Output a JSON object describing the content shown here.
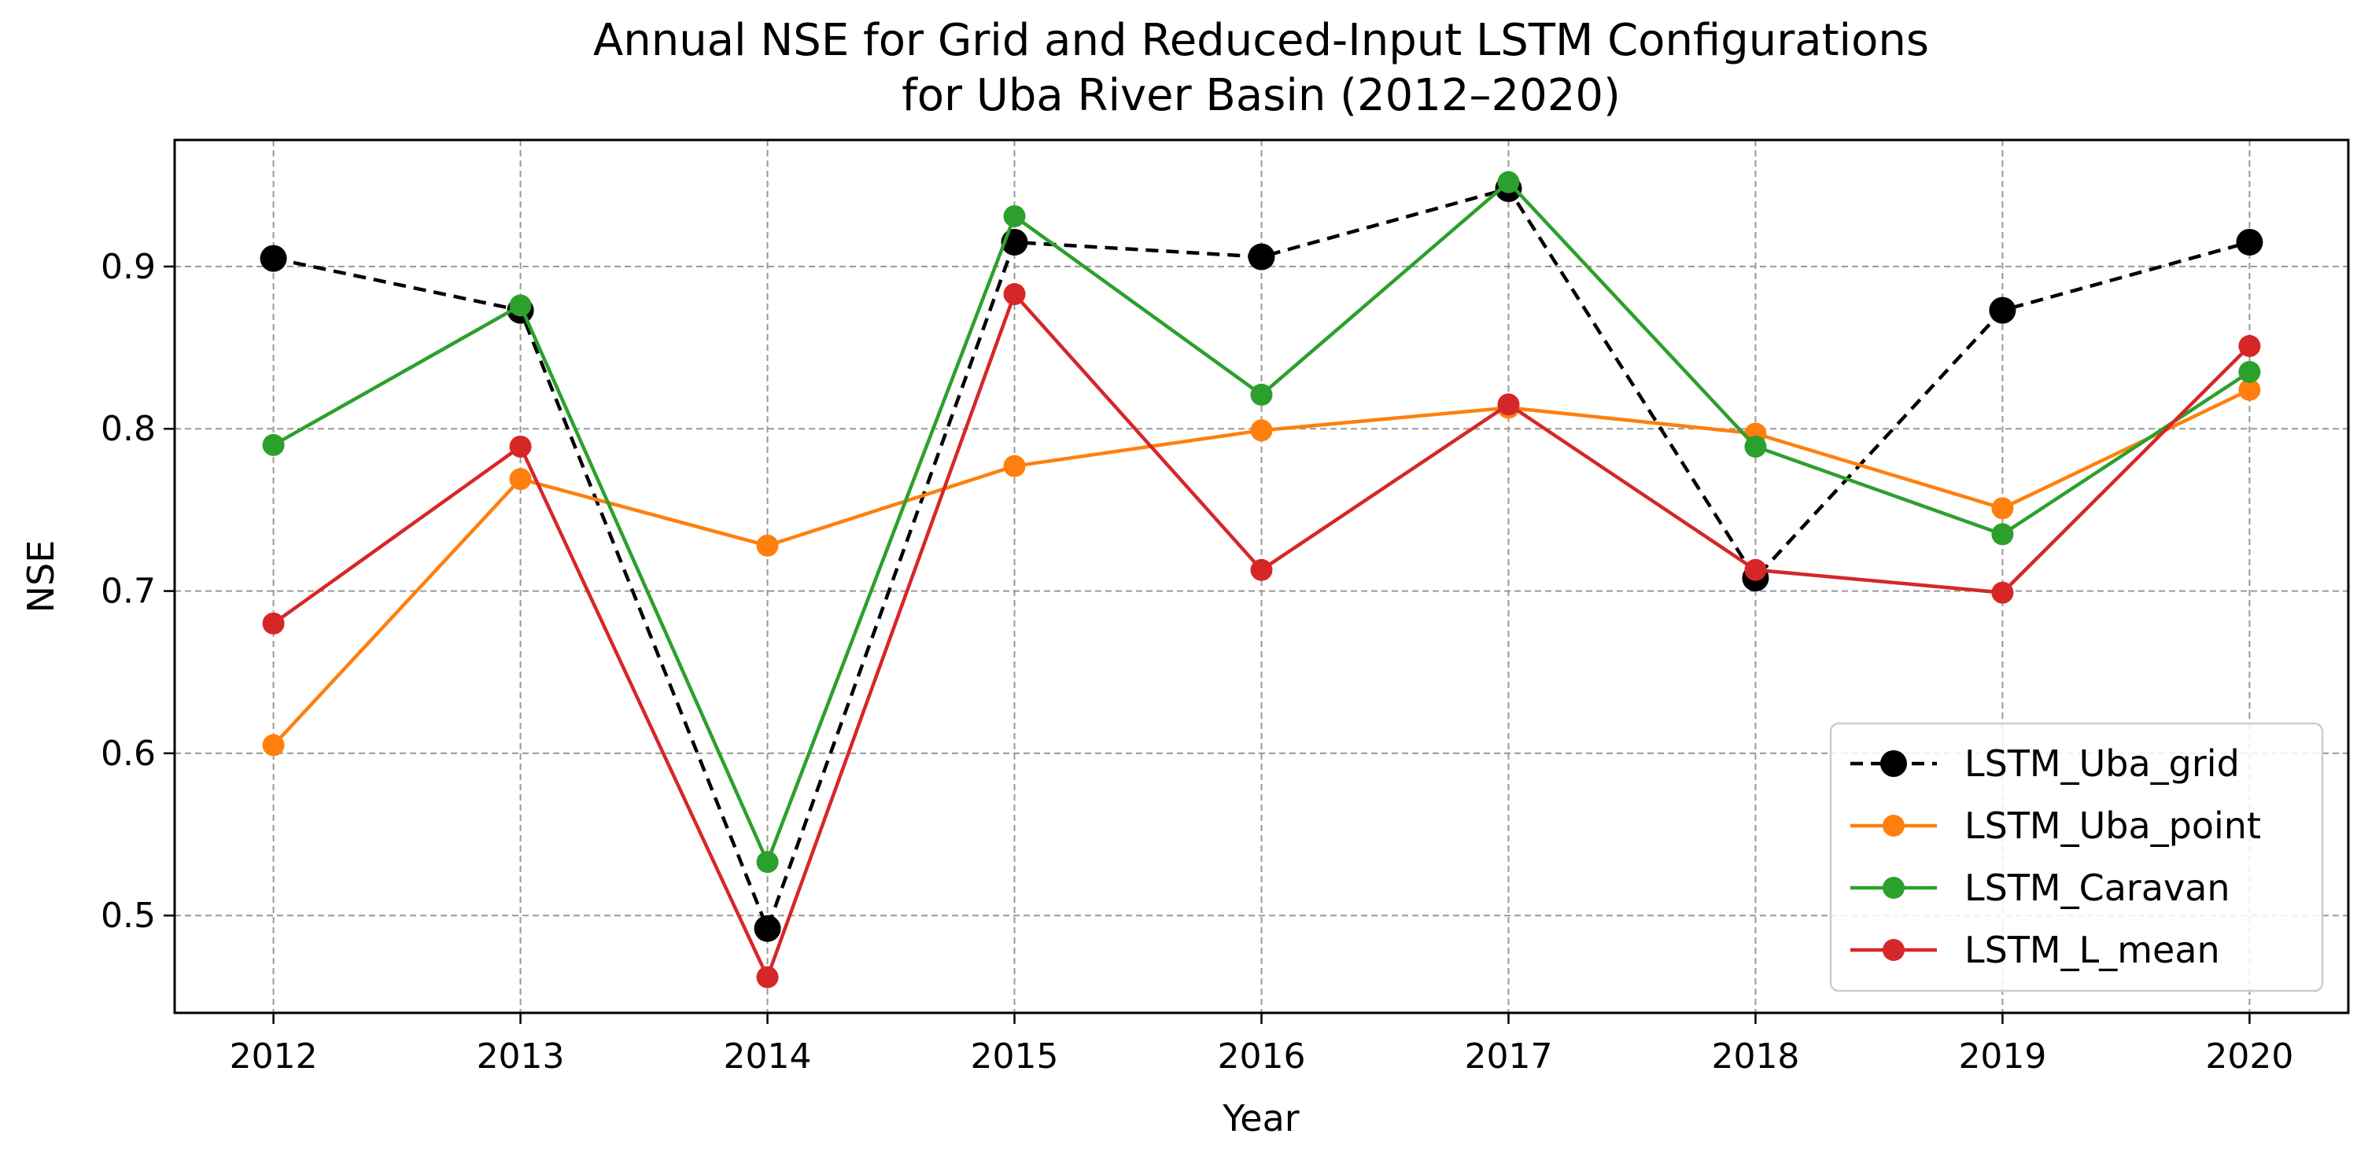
{
  "chart_data": {
    "type": "line",
    "title": "Annual NSE for Grid and Reduced-Input LSTM Configurations",
    "subtitle": "for Uba River Basin (2012–2020)",
    "xlabel": "Year",
    "ylabel": "NSE",
    "x": [
      2012,
      2013,
      2014,
      2015,
      2016,
      2017,
      2018,
      2019,
      2020
    ],
    "xlim": [
      2011.6,
      2020.4
    ],
    "ylim": [
      0.44,
      0.978
    ],
    "yticks": [
      0.5,
      0.6,
      0.7,
      0.8,
      0.9
    ],
    "grid": true,
    "legend_position": "bottom-right",
    "series": [
      {
        "name": "LSTM_Uba_grid",
        "color": "#000000",
        "dashed": true,
        "values": [
          0.905,
          0.873,
          0.492,
          0.915,
          0.906,
          0.948,
          0.708,
          0.873,
          0.915
        ]
      },
      {
        "name": "LSTM_Uba_point",
        "color": "#ff7f0e",
        "dashed": false,
        "values": [
          0.605,
          0.769,
          0.728,
          0.777,
          0.799,
          0.813,
          0.797,
          0.751,
          0.824
        ]
      },
      {
        "name": "LSTM_Caravan",
        "color": "#2ca02c",
        "dashed": false,
        "values": [
          0.79,
          0.876,
          0.533,
          0.931,
          0.821,
          0.952,
          0.789,
          0.735,
          0.835
        ]
      },
      {
        "name": "LSTM_L_mean",
        "color": "#d62728",
        "dashed": false,
        "values": [
          0.68,
          0.789,
          0.462,
          0.883,
          0.713,
          0.815,
          0.713,
          0.699,
          0.851
        ]
      }
    ]
  }
}
